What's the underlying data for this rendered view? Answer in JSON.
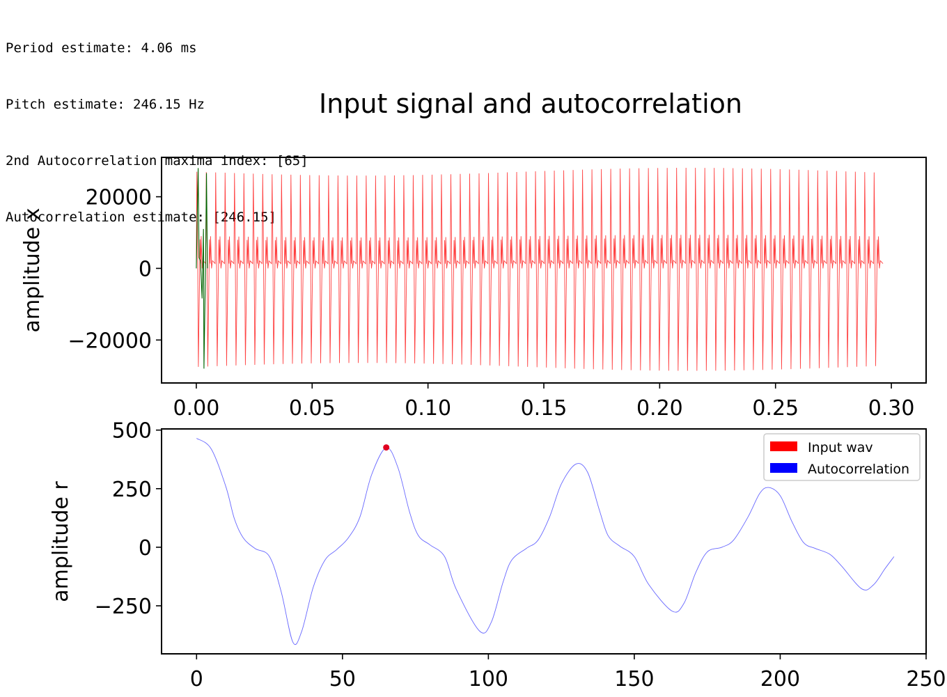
{
  "console": {
    "lines": [
      "Period estimate: 4.06 ms",
      "Pitch estimate: 246.15 Hz",
      "2nd Autocorrelation maxima index: [65]",
      "Autocorrelation estimate: [246.15]"
    ]
  },
  "figure_title": "Input signal and autocorrelation",
  "colors": {
    "input_wav": "#ff0000",
    "autocorrelation": "#0000ff",
    "segment": "#006400",
    "peak_marker": "#e00020"
  },
  "chart_data": [
    {
      "type": "line",
      "ylabel": "amplitude x",
      "xlim": [
        -0.015,
        0.315
      ],
      "ylim": [
        -32000,
        31000
      ],
      "xticks": [
        0.0,
        0.05,
        0.1,
        0.15,
        0.2,
        0.25,
        0.3
      ],
      "xtick_labels": [
        "0.00",
        "0.05",
        "0.10",
        "0.15",
        "0.20",
        "0.25",
        "0.30"
      ],
      "yticks": [
        -20000,
        0,
        20000
      ],
      "ytick_labels": [
        "−20000",
        "0",
        "20000"
      ],
      "series": [
        {
          "name": "Input wav",
          "color": "#ff0000",
          "duration_s": 0.2995,
          "period_s": 0.00406,
          "pos_peak": 27000,
          "neg_peak": -27500,
          "shoulder": 9000
        },
        {
          "color": "#006400",
          "x_range": [
            0.0,
            0.0048
          ],
          "period_s": 0.00406,
          "pos_peak": 28000,
          "neg_peak": -28000
        }
      ]
    },
    {
      "type": "line",
      "ylabel": "amplitude r",
      "xlim": [
        -12,
        250
      ],
      "ylim": [
        -455,
        505
      ],
      "xticks": [
        0,
        50,
        100,
        150,
        200,
        250
      ],
      "xtick_labels": [
        "0",
        "50",
        "100",
        "150",
        "200",
        "250"
      ],
      "yticks": [
        -250,
        0,
        250,
        500
      ],
      "ytick_labels": [
        "−250",
        "0",
        "250",
        "500"
      ],
      "legend": {
        "placement": "top-right",
        "entries": [
          "Input wav",
          "Autocorrelation"
        ]
      },
      "series": [
        {
          "name": "Autocorrelation",
          "color": "#0000ff",
          "points": [
            [
              0,
              465
            ],
            [
              5,
              420
            ],
            [
              10,
              260
            ],
            [
              13,
              120
            ],
            [
              16,
              40
            ],
            [
              20,
              -5
            ],
            [
              25,
              -40
            ],
            [
              29,
              -190
            ],
            [
              33,
              -405
            ],
            [
              36,
              -360
            ],
            [
              40,
              -170
            ],
            [
              44,
              -55
            ],
            [
              48,
              -10
            ],
            [
              52,
              40
            ],
            [
              56,
              130
            ],
            [
              60,
              310
            ],
            [
              65,
              425
            ],
            [
              69,
              340
            ],
            [
              73,
              150
            ],
            [
              76,
              50
            ],
            [
              80,
              10
            ],
            [
              85,
              -40
            ],
            [
              89,
              -180
            ],
            [
              97,
              -358
            ],
            [
              101,
              -320
            ],
            [
              105,
              -150
            ],
            [
              108,
              -55
            ],
            [
              113,
              -5
            ],
            [
              117,
              30
            ],
            [
              121,
              130
            ],
            [
              125,
              270
            ],
            [
              130,
              355
            ],
            [
              134,
              320
            ],
            [
              138,
              160
            ],
            [
              141,
              50
            ],
            [
              145,
              5
            ],
            [
              150,
              -40
            ],
            [
              155,
              -160
            ],
            [
              163,
              -273
            ],
            [
              167,
              -240
            ],
            [
              171,
              -110
            ],
            [
              175,
              -20
            ],
            [
              180,
              0
            ],
            [
              184,
              30
            ],
            [
              189,
              130
            ],
            [
              193,
              230
            ],
            [
              196,
              255
            ],
            [
              200,
              220
            ],
            [
              204,
              110
            ],
            [
              208,
              20
            ],
            [
              212,
              -5
            ],
            [
              217,
              -30
            ],
            [
              221,
              -80
            ],
            [
              228,
              -178
            ],
            [
              232,
              -160
            ],
            [
              236,
              -90
            ],
            [
              239,
              -40
            ]
          ]
        }
      ],
      "marker": {
        "x": 65,
        "y": 426
      }
    }
  ]
}
